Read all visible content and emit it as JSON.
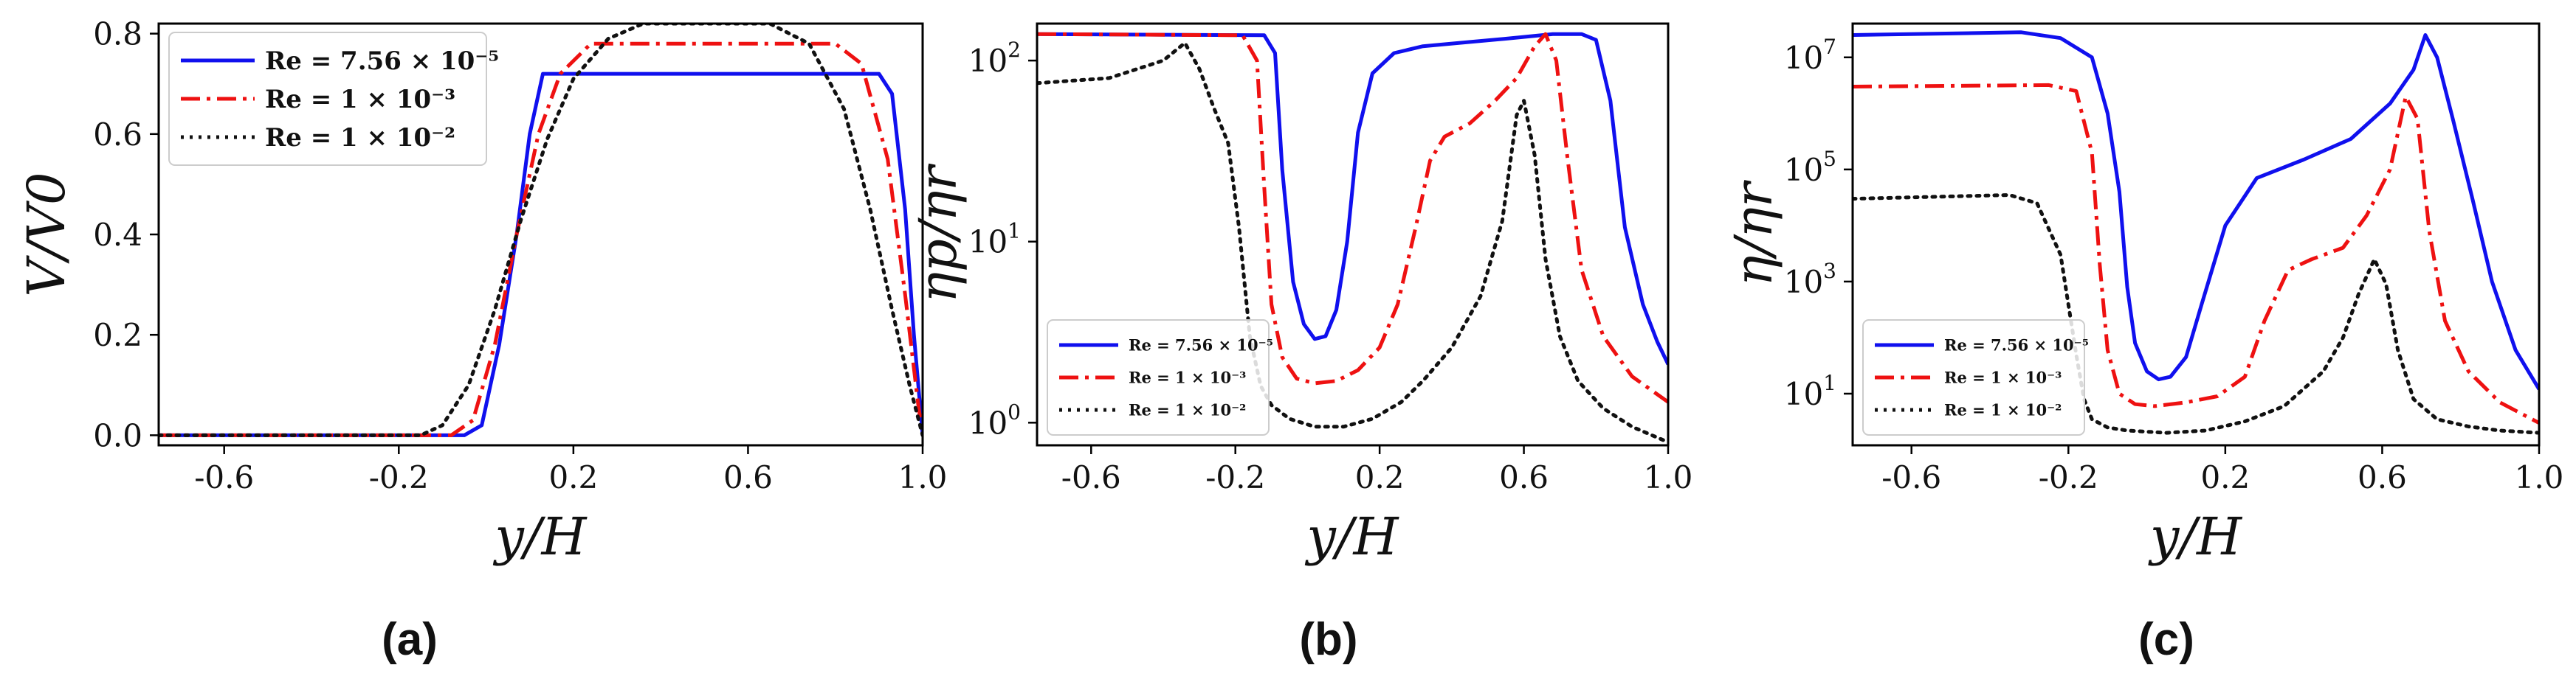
{
  "chart_data": [
    {
      "type": "line",
      "panel": "(a)",
      "xlabel": "y/H",
      "ylabel": "V/V0",
      "yscale": "linear",
      "xlim": [
        -0.75,
        1.0
      ],
      "ylim": [
        -0.02,
        0.82
      ],
      "xticks": [
        "-0.6",
        "-0.2",
        "0.2",
        "0.6",
        "1.0"
      ],
      "yticks": [
        "0.0",
        "0.2",
        "0.4",
        "0.6",
        "0.8"
      ],
      "legend_position": "top-left",
      "series": [
        {
          "name": "Re = 7.56 × 10⁻⁵",
          "color": "#1010ee",
          "dash": "solid",
          "x": [
            -0.75,
            -0.05,
            -0.01,
            0.03,
            0.07,
            0.1,
            0.13,
            0.9,
            0.93,
            0.96,
            0.98,
            1.0
          ],
          "y": [
            0.0,
            0.0,
            0.02,
            0.18,
            0.4,
            0.6,
            0.72,
            0.72,
            0.68,
            0.45,
            0.2,
            0.0
          ]
        },
        {
          "name": "Re = 1 × 10⁻³",
          "color": "#ee1111",
          "dash": "dashdot",
          "x": [
            -0.75,
            -0.08,
            -0.03,
            0.02,
            0.07,
            0.12,
            0.17,
            0.24,
            0.8,
            0.86,
            0.92,
            0.96,
            0.99,
            1.0
          ],
          "y": [
            0.0,
            0.0,
            0.03,
            0.18,
            0.4,
            0.6,
            0.72,
            0.78,
            0.78,
            0.74,
            0.55,
            0.28,
            0.06,
            0.0
          ]
        },
        {
          "name": "Re = 1 × 10⁻²",
          "color": "#111111",
          "dash": "dotted",
          "x": [
            -0.75,
            -0.15,
            -0.1,
            -0.04,
            0.02,
            0.08,
            0.14,
            0.2,
            0.28,
            0.36,
            0.65,
            0.74,
            0.82,
            0.88,
            0.93,
            0.97,
            1.0
          ],
          "y": [
            0.0,
            0.0,
            0.02,
            0.1,
            0.25,
            0.43,
            0.59,
            0.71,
            0.79,
            0.82,
            0.82,
            0.78,
            0.65,
            0.45,
            0.25,
            0.1,
            0.0
          ]
        }
      ]
    },
    {
      "type": "line",
      "panel": "(b)",
      "xlabel": "y/H",
      "ylabel": "ηp/ηr",
      "yscale": "log",
      "xlim": [
        -0.75,
        1.0
      ],
      "ylim": [
        0.75,
        160
      ],
      "xticks": [
        "-0.6",
        "-0.2",
        "0.2",
        "0.6",
        "1.0"
      ],
      "yticks": [
        {
          "base": "10",
          "exp": "0"
        },
        {
          "base": "10",
          "exp": "1"
        },
        {
          "base": "10",
          "exp": "2"
        }
      ],
      "legend_position": "bottom-left",
      "series": [
        {
          "name": "Re = 7.56 × 10⁻⁵",
          "color": "#1010ee",
          "dash": "solid",
          "x": [
            -0.75,
            -0.12,
            -0.09,
            -0.07,
            -0.04,
            -0.01,
            0.02,
            0.05,
            0.08,
            0.11,
            0.14,
            0.18,
            0.24,
            0.32,
            0.42,
            0.55,
            0.68,
            0.76,
            0.8,
            0.84,
            0.88,
            0.93,
            0.97,
            1.0
          ],
          "y": [
            140,
            138,
            110,
            25,
            6,
            3.5,
            2.9,
            3.0,
            4.2,
            10,
            40,
            85,
            110,
            120,
            125,
            132,
            140,
            140,
            130,
            60,
            12,
            4.5,
            2.8,
            2.1
          ]
        },
        {
          "name": "Re = 1 × 10⁻³",
          "color": "#ee1111",
          "dash": "dashdot",
          "x": [
            -0.75,
            -0.18,
            -0.14,
            -0.12,
            -0.1,
            -0.07,
            -0.03,
            0.02,
            0.08,
            0.14,
            0.2,
            0.25,
            0.3,
            0.34,
            0.38,
            0.45,
            0.52,
            0.58,
            0.63,
            0.66,
            0.69,
            0.72,
            0.76,
            0.82,
            0.9,
            1.0
          ],
          "y": [
            140,
            138,
            100,
            20,
            4.5,
            2.3,
            1.75,
            1.65,
            1.7,
            1.95,
            2.6,
            4.5,
            12,
            28,
            38,
            45,
            60,
            80,
            120,
            140,
            100,
            30,
            7,
            3,
            1.8,
            1.3
          ]
        },
        {
          "name": "Re = 1 × 10⁻²",
          "color": "#111111",
          "dash": "dotted",
          "x": [
            -0.75,
            -0.55,
            -0.4,
            -0.34,
            -0.3,
            -0.26,
            -0.22,
            -0.19,
            -0.16,
            -0.13,
            -0.1,
            -0.05,
            0.02,
            0.1,
            0.18,
            0.26,
            0.32,
            0.4,
            0.48,
            0.54,
            0.58,
            0.6,
            0.63,
            0.66,
            0.7,
            0.75,
            0.82,
            0.9,
            1.0
          ],
          "y": [
            75,
            80,
            100,
            125,
            90,
            55,
            35,
            12,
            3,
            1.6,
            1.25,
            1.05,
            0.95,
            0.95,
            1.05,
            1.3,
            1.7,
            2.6,
            5,
            13,
            50,
            60,
            30,
            8,
            3,
            1.7,
            1.2,
            0.95,
            0.78
          ]
        }
      ]
    },
    {
      "type": "line",
      "panel": "(c)",
      "xlabel": "y/H",
      "ylabel": "η/ηr",
      "yscale": "log",
      "xlim": [
        -0.75,
        1.0
      ],
      "ylim": [
        1.2,
        40000000
      ],
      "xticks": [
        "-0.6",
        "-0.2",
        "0.2",
        "0.6",
        "1.0"
      ],
      "yticks": [
        {
          "base": "10",
          "exp": "1"
        },
        {
          "base": "10",
          "exp": "3"
        },
        {
          "base": "10",
          "exp": "5"
        },
        {
          "base": "10",
          "exp": "7"
        }
      ],
      "legend_position": "bottom-left",
      "series": [
        {
          "name": "Re = 7.56 × 10⁻⁵",
          "color": "#1010ee",
          "dash": "solid",
          "x": [
            -0.75,
            -0.32,
            -0.22,
            -0.14,
            -0.1,
            -0.07,
            -0.05,
            -0.03,
            0.0,
            0.03,
            0.06,
            0.1,
            0.14,
            0.2,
            0.28,
            0.4,
            0.52,
            0.62,
            0.68,
            0.71,
            0.74,
            0.78,
            0.83,
            0.88,
            0.94,
            1.0
          ],
          "y": [
            25000000,
            28000000,
            22000000,
            10000000,
            1000000,
            40000,
            800,
            80,
            25,
            18,
            20,
            45,
            400,
            10000,
            70000,
            150000,
            350000,
            1500000,
            6000000,
            25000000,
            10000000,
            800000,
            30000,
            1000,
            60,
            12
          ]
        },
        {
          "name": "Re = 1 × 10⁻³",
          "color": "#ee1111",
          "dash": "dashdot",
          "x": [
            -0.75,
            -0.25,
            -0.18,
            -0.14,
            -0.12,
            -0.1,
            -0.07,
            -0.03,
            0.02,
            0.1,
            0.18,
            0.25,
            0.3,
            0.36,
            0.42,
            0.5,
            0.56,
            0.62,
            0.66,
            0.69,
            0.72,
            0.76,
            0.82,
            0.9,
            1.0
          ],
          "y": [
            3000000,
            3200000,
            2500000,
            200000,
            2000,
            60,
            10,
            6.5,
            6,
            7,
            9,
            20,
            200,
            1600,
            2500,
            4000,
            15000,
            100000,
            2000000,
            800000,
            8000,
            200,
            25,
            7,
            3
          ]
        },
        {
          "name": "Re = 1 × 10⁻²",
          "color": "#111111",
          "dash": "dotted",
          "x": [
            -0.75,
            -0.35,
            -0.28,
            -0.22,
            -0.18,
            -0.16,
            -0.14,
            -0.1,
            -0.05,
            0.05,
            0.15,
            0.25,
            0.35,
            0.45,
            0.5,
            0.54,
            0.58,
            0.61,
            0.64,
            0.68,
            0.74,
            0.82,
            0.9,
            1.0
          ],
          "y": [
            30000,
            35000,
            25000,
            3000,
            50,
            8,
            3.5,
            2.5,
            2.2,
            2.0,
            2.2,
            3.2,
            6,
            25,
            100,
            600,
            2500,
            900,
            60,
            8,
            3.5,
            2.6,
            2.2,
            2.0
          ]
        }
      ]
    }
  ]
}
